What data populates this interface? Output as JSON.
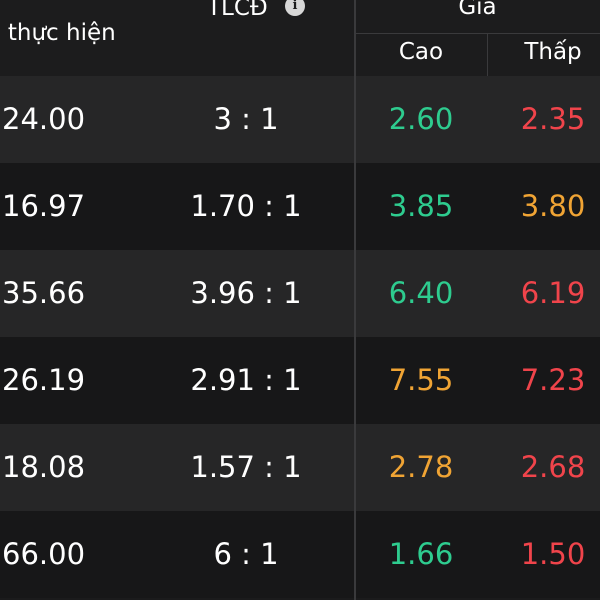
{
  "header": {
    "price_col": "n thực hiện",
    "ratio_col": "TLCĐ",
    "info_glyph": "i",
    "group_col": "Giá",
    "high_col": "Cao",
    "low_col": "Thấp"
  },
  "colors": {
    "up": "#2ecc8f",
    "down": "#f0444b",
    "reference": "#f0a434"
  },
  "rows": [
    {
      "price": "24.00",
      "ratio": "3 : 1",
      "high": "2.60",
      "high_color": "green",
      "low": "2.35",
      "low_color": "red"
    },
    {
      "price": "16.97",
      "ratio": "1.70 : 1",
      "high": "3.85",
      "high_color": "green",
      "low": "3.80",
      "low_color": "orange"
    },
    {
      "price": "35.66",
      "ratio": "3.96 : 1",
      "high": "6.40",
      "high_color": "green",
      "low": "6.19",
      "low_color": "red"
    },
    {
      "price": "26.19",
      "ratio": "2.91 : 1",
      "high": "7.55",
      "high_color": "orange",
      "low": "7.23",
      "low_color": "red"
    },
    {
      "price": "18.08",
      "ratio": "1.57 : 1",
      "high": "2.78",
      "high_color": "orange",
      "low": "2.68",
      "low_color": "red"
    },
    {
      "price": "66.00",
      "ratio": "6 : 1",
      "high": "1.66",
      "high_color": "green",
      "low": "1.50",
      "low_color": "red"
    }
  ]
}
